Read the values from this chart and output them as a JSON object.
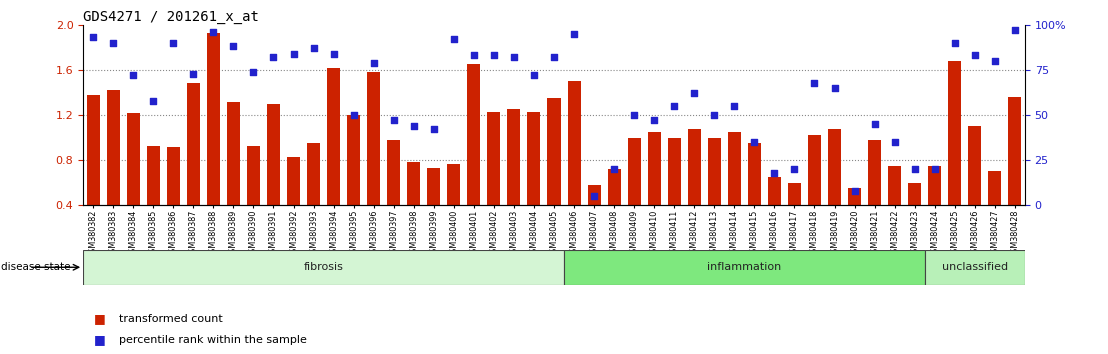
{
  "title": "GDS4271 / 201261_x_at",
  "samples": [
    "GSM380382",
    "GSM380383",
    "GSM380384",
    "GSM380385",
    "GSM380386",
    "GSM380387",
    "GSM380388",
    "GSM380389",
    "GSM380390",
    "GSM380391",
    "GSM380392",
    "GSM380393",
    "GSM380394",
    "GSM380395",
    "GSM380396",
    "GSM380397",
    "GSM380398",
    "GSM380399",
    "GSM380400",
    "GSM380401",
    "GSM380402",
    "GSM380403",
    "GSM380404",
    "GSM380405",
    "GSM380406",
    "GSM380407",
    "GSM380408",
    "GSM380409",
    "GSM380410",
    "GSM380411",
    "GSM380412",
    "GSM380413",
    "GSM380414",
    "GSM380415",
    "GSM380416",
    "GSM380417",
    "GSM380418",
    "GSM380419",
    "GSM380420",
    "GSM380421",
    "GSM380422",
    "GSM380423",
    "GSM380424",
    "GSM380425",
    "GSM380426",
    "GSM380427",
    "GSM380428"
  ],
  "bar_values": [
    1.38,
    1.42,
    1.22,
    0.93,
    0.92,
    1.48,
    1.93,
    1.32,
    0.93,
    1.3,
    0.83,
    0.95,
    1.62,
    1.2,
    1.58,
    0.98,
    0.78,
    0.73,
    0.77,
    1.65,
    1.23,
    1.25,
    1.23,
    1.35,
    1.5,
    0.58,
    0.72,
    1.0,
    1.05,
    1.0,
    1.08,
    1.0,
    1.05,
    0.95,
    0.65,
    0.6,
    1.02,
    1.08,
    0.55,
    0.98,
    0.75,
    0.6,
    0.75,
    1.68,
    1.1,
    0.7,
    1.36
  ],
  "dot_values": [
    93,
    90,
    72,
    58,
    90,
    73,
    96,
    88,
    74,
    82,
    84,
    87,
    84,
    50,
    79,
    47,
    44,
    42,
    92,
    83,
    83,
    82,
    72,
    82,
    95,
    5,
    20,
    50,
    47,
    55,
    62,
    50,
    55,
    35,
    18,
    20,
    68,
    65,
    8,
    45,
    35,
    20,
    20,
    90,
    83,
    80,
    97
  ],
  "disease_states": [
    {
      "label": "fibrosis",
      "start": 0,
      "end": 23,
      "color": "#d4f5d4"
    },
    {
      "label": "inflammation",
      "start": 24,
      "end": 41,
      "color": "#7ee87e"
    },
    {
      "label": "unclassified",
      "start": 42,
      "end": 46,
      "color": "#b8f0b8"
    }
  ],
  "ylim_left": [
    0.4,
    2.0
  ],
  "ylim_right": [
    0,
    100
  ],
  "yticks_left": [
    0.4,
    0.8,
    1.2,
    1.6,
    2.0
  ],
  "yticks_right": [
    0,
    25,
    50,
    75,
    100
  ],
  "ytick_labels_right": [
    "0",
    "25",
    "50",
    "75",
    "100%"
  ],
  "bar_color": "#cc2200",
  "dot_color": "#2222cc",
  "bg_color": "#ffffff",
  "grid_color": "#888888",
  "grid_lines": [
    0.8,
    1.2,
    1.6
  ]
}
